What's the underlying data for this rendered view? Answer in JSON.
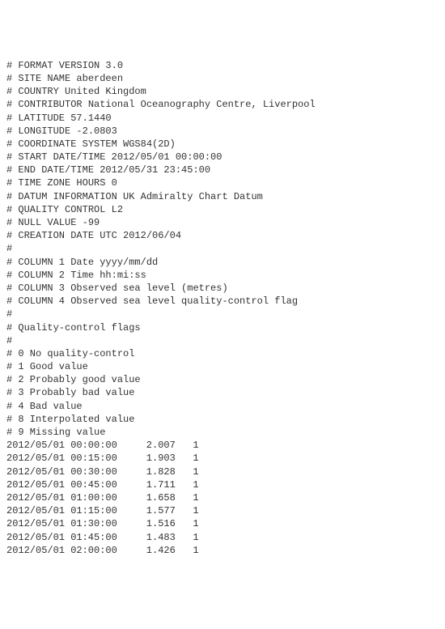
{
  "header": {
    "lines": [
      "# FORMAT VERSION 3.0",
      "# SITE NAME aberdeen",
      "# COUNTRY United Kingdom",
      "# CONTRIBUTOR National Oceanography Centre, Liverpool",
      "# LATITUDE 57.1440",
      "# LONGITUDE -2.0803",
      "# COORDINATE SYSTEM WGS84(2D)",
      "# START DATE/TIME 2012/05/01 00:00:00",
      "# END DATE/TIME 2012/05/31 23:45:00",
      "# TIME ZONE HOURS 0",
      "# DATUM INFORMATION UK Admiralty Chart Datum",
      "# QUALITY CONTROL L2",
      "# NULL VALUE -99",
      "# CREATION DATE UTC 2012/06/04",
      "#",
      "# COLUMN 1 Date yyyy/mm/dd",
      "# COLUMN 2 Time hh:mi:ss",
      "# COLUMN 3 Observed sea level (metres)",
      "# COLUMN 4 Observed sea level quality-control flag",
      "#",
      "# Quality-control flags",
      "#",
      "# 0 No quality-control",
      "# 1 Good value",
      "# 2 Probably good value",
      "# 3 Probably bad value",
      "# 4 Bad value",
      "# 8 Interpolated value",
      "# 9 Missing value"
    ]
  },
  "columns": [
    "Date",
    "Time",
    "Observed sea level (metres)",
    "Observed sea level quality-control flag"
  ],
  "data": {
    "rows": [
      {
        "date": "2012/05/01",
        "time": "00:00:00",
        "value": "2.007",
        "flag": "1"
      },
      {
        "date": "2012/05/01",
        "time": "00:15:00",
        "value": "1.903",
        "flag": "1"
      },
      {
        "date": "2012/05/01",
        "time": "00:30:00",
        "value": "1.828",
        "flag": "1"
      },
      {
        "date": "2012/05/01",
        "time": "00:45:00",
        "value": "1.711",
        "flag": "1"
      },
      {
        "date": "2012/05/01",
        "time": "01:00:00",
        "value": "1.658",
        "flag": "1"
      },
      {
        "date": "2012/05/01",
        "time": "01:15:00",
        "value": "1.577",
        "flag": "1"
      },
      {
        "date": "2012/05/01",
        "time": "01:30:00",
        "value": "1.516",
        "flag": "1"
      },
      {
        "date": "2012/05/01",
        "time": "01:45:00",
        "value": "1.483",
        "flag": "1"
      },
      {
        "date": "2012/05/01",
        "time": "02:00:00",
        "value": "1.426",
        "flag": "1"
      }
    ]
  },
  "style": {
    "font_family": "Courier New",
    "font_size_pt": 12,
    "text_color": "#333333",
    "background_color": "#ffffff",
    "col_widths_ch": {
      "date": 10,
      "time": 12,
      "value": 6,
      "flag": 4
    }
  }
}
